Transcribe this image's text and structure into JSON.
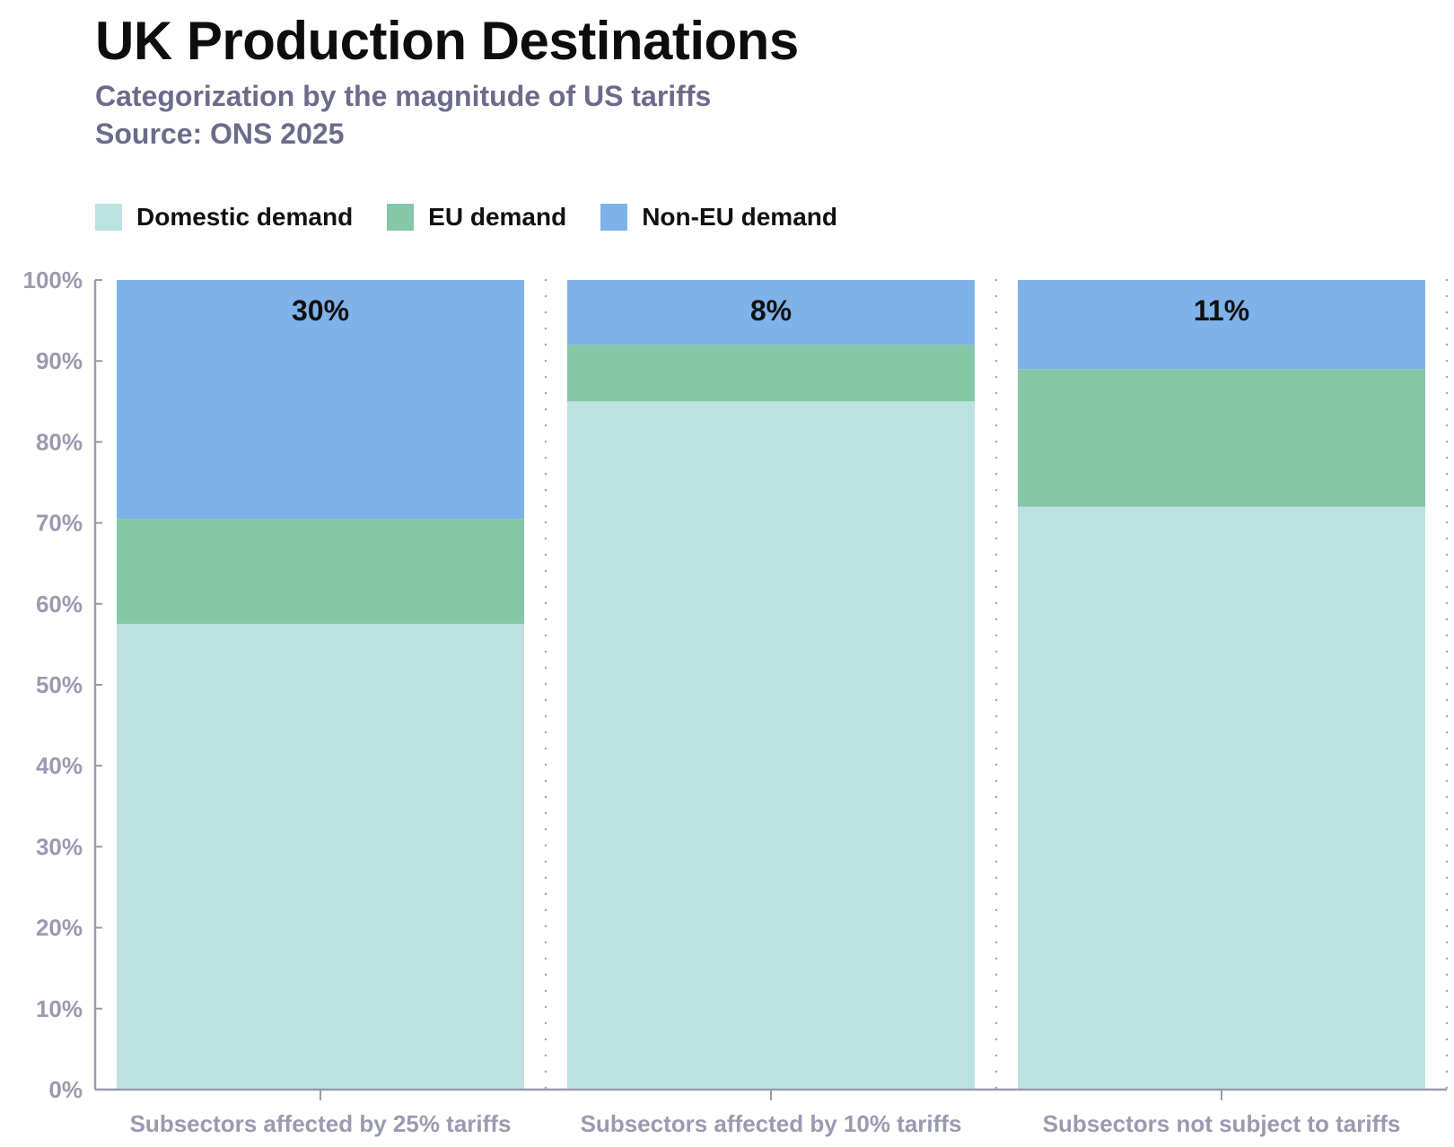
{
  "header": {
    "title": "UK Production Destinations",
    "subtitle_line1": "Categorization by the magnitude of US tariffs",
    "subtitle_line2": "Source: ONS 2025"
  },
  "colors": {
    "domestic": "#bce3e1",
    "eu": "#86c7a7",
    "non_eu": "#7fb2e8",
    "axis": "#9a9ab0",
    "tick_label": "#9a9ab0",
    "category_label": "#9a9ab0",
    "grid_dot": "#a6a6b8",
    "bar_label": "#111111"
  },
  "legend": [
    {
      "label": "Domestic demand",
      "color_key": "domestic"
    },
    {
      "label": "EU demand",
      "color_key": "eu"
    },
    {
      "label": "Non-EU demand",
      "color_key": "non_eu"
    }
  ],
  "chart_data": {
    "type": "bar",
    "stacked": true,
    "categories": [
      "Subsectors affected by 25% tariffs",
      "Subsectors affected by 10% tariffs",
      "Subsectors not subject to tariffs"
    ],
    "series": [
      {
        "name": "Domestic demand",
        "color_key": "domestic",
        "values": [
          57.5,
          85,
          72
        ]
      },
      {
        "name": "EU demand",
        "color_key": "eu",
        "values": [
          13,
          7,
          17
        ]
      },
      {
        "name": "Non-EU demand",
        "color_key": "non_eu",
        "values": [
          29.5,
          8,
          11
        ]
      }
    ],
    "bar_labels": [
      "30%",
      "8%",
      "11%"
    ],
    "title": "UK Production Destinations",
    "subtitle": "Categorization by the magnitude of US tariffs",
    "xlabel": "",
    "ylabel": "",
    "ylim": [
      0,
      100
    ],
    "yticks": [
      0,
      10,
      20,
      30,
      40,
      50,
      60,
      70,
      80,
      90,
      100
    ],
    "ytick_labels": [
      "0%",
      "10%",
      "20%",
      "30%",
      "40%",
      "50%",
      "60%",
      "70%",
      "80%",
      "90%",
      "100%"
    ],
    "grid": "vertical dotted",
    "legend_position": "top-left"
  }
}
